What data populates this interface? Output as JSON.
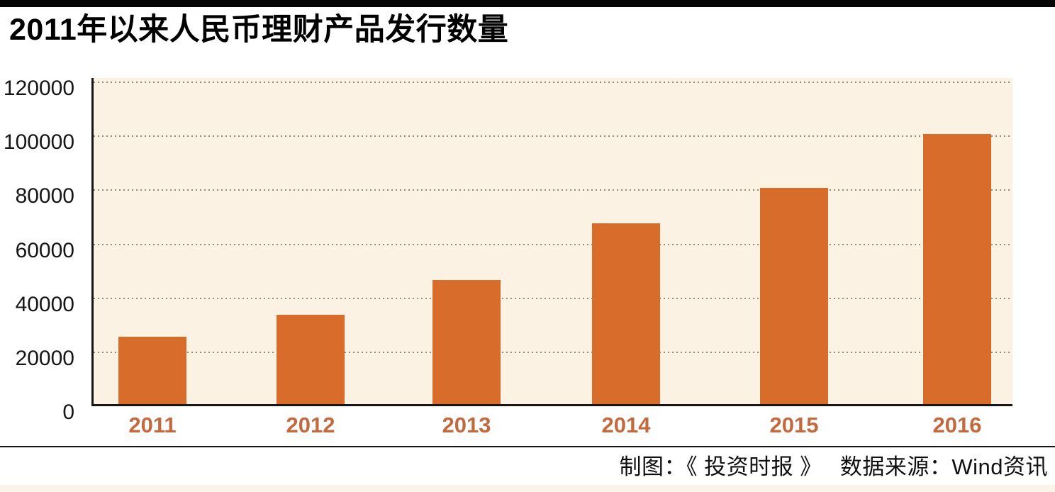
{
  "header": {
    "title": "2011年以来人民币理财产品发行数量"
  },
  "footer": {
    "credit": "制图：《 投资时报 》　 数据来源：Wind资讯"
  },
  "chart_data": {
    "type": "bar",
    "title": "2011年以来人民币理财产品发行数量",
    "categories": [
      "2011",
      "2012",
      "2013",
      "2014",
      "2015",
      "2016"
    ],
    "values": [
      25000,
      33000,
      46000,
      67000,
      80000,
      100000
    ],
    "xlabel": "",
    "ylabel": "",
    "ylim": [
      0,
      120000
    ],
    "ytick_interval": 20000,
    "ytick_labels": [
      "0",
      "20000",
      "40000",
      "60000",
      "80000",
      "100000",
      "120000"
    ],
    "grid": "horizontal-dotted",
    "legend_position": "none",
    "colors": {
      "bar": "#d76c2b",
      "plot_background": "#fbf2e4",
      "gridline": "#94897b",
      "x_tick": "#c2693e",
      "y_tick": "#161616",
      "accent_bar": "#050505"
    }
  }
}
